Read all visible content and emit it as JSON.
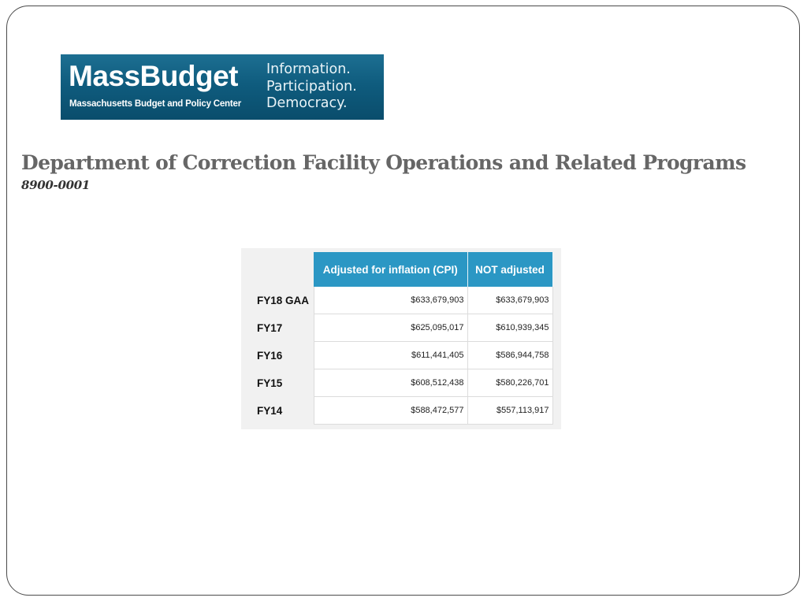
{
  "logo": {
    "name": "MassBudget",
    "subtitle": "Massachusetts Budget and Policy Center",
    "tagline": [
      "Information.",
      "Participation.",
      "Democracy."
    ]
  },
  "title": "Department of Correction Facility Operations and Related Programs",
  "subtitle": "8900-0001",
  "table": {
    "headers": [
      "",
      "Adjusted for inflation (CPI)",
      "NOT adjusted"
    ],
    "rows": [
      {
        "label": "FY18 GAA",
        "adjusted": "$633,679,903",
        "not_adjusted": "$633,679,903"
      },
      {
        "label": "FY17",
        "adjusted": "$625,095,017",
        "not_adjusted": "$610,939,345"
      },
      {
        "label": "FY16",
        "adjusted": "$611,441,405",
        "not_adjusted": "$586,944,758"
      },
      {
        "label": "FY15",
        "adjusted": "$608,512,438",
        "not_adjusted": "$580,226,701"
      },
      {
        "label": "FY14",
        "adjusted": "$588,472,577",
        "not_adjusted": "$557,113,917"
      }
    ]
  },
  "colors": {
    "header_blue": "#2b97c4",
    "logo_blue": "#0f5c7e",
    "title_gray": "#666666"
  }
}
